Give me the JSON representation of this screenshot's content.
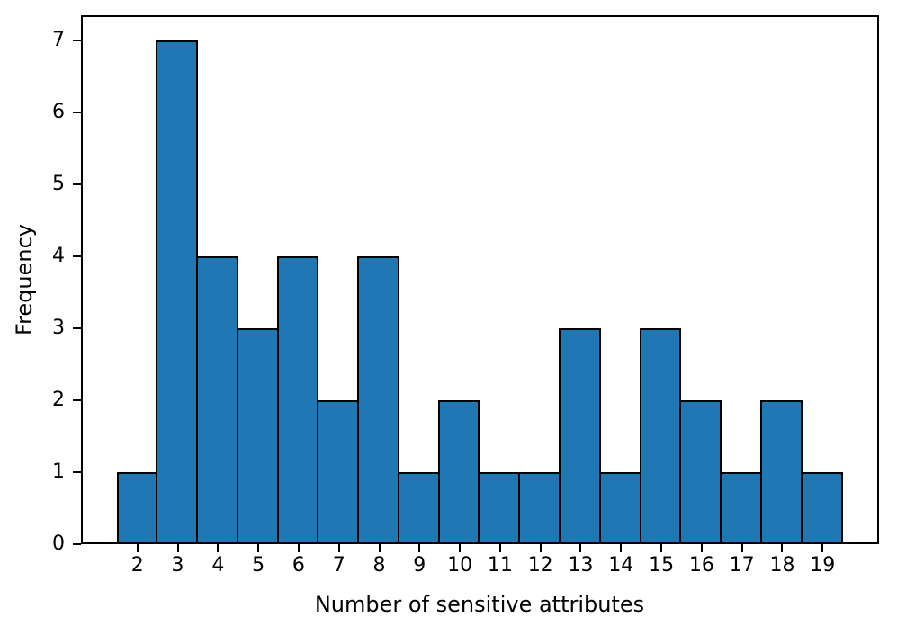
{
  "chart_data": {
    "type": "bar",
    "subtype": "histogram",
    "title": "",
    "xlabel": "Number of sensitive attributes",
    "ylabel": "Frequency",
    "categories": [
      2,
      3,
      4,
      5,
      6,
      7,
      8,
      9,
      10,
      11,
      12,
      13,
      14,
      15,
      16,
      17,
      18,
      19
    ],
    "values": [
      1,
      7,
      4,
      3,
      4,
      2,
      4,
      1,
      2,
      1,
      1,
      3,
      1,
      3,
      2,
      1,
      2,
      1
    ],
    "bin_width": 1,
    "xlim": [
      0.6,
      20.4
    ],
    "ylim": [
      0,
      7.35
    ],
    "yticks": [
      0,
      1,
      2,
      3,
      4,
      5,
      6,
      7
    ],
    "grid": "off",
    "legend": "none",
    "bar_color": "#1f77b4",
    "bar_edge_color": "#000000",
    "axis_color": "#000000",
    "background_color": "#ffffff"
  }
}
